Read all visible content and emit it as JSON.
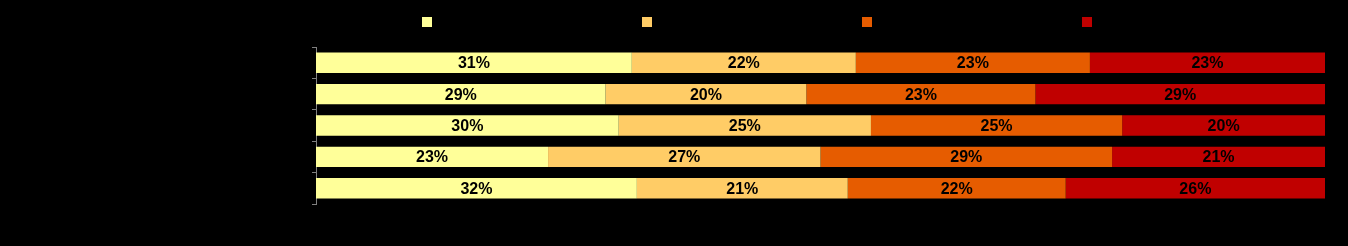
{
  "chart_data": {
    "type": "bar",
    "orientation": "horizontal",
    "stacked": true,
    "data_labels": true,
    "tick_labels": false,
    "legend": "top",
    "grid": false,
    "categories": [
      null,
      null,
      null,
      null,
      null
    ],
    "xlim": [
      0,
      100
    ],
    "series": [
      {
        "color": "#ffff99",
        "values": [
          31.3,
          28.7,
          30.0,
          23.0,
          31.8
        ],
        "value_labels": [
          "31%",
          "29%",
          "30%",
          "23%",
          "32%"
        ]
      },
      {
        "color": "#ffcc66",
        "values": [
          22.2,
          19.9,
          25.0,
          27.0,
          20.9
        ],
        "value_labels": [
          "22%",
          "20%",
          "25%",
          "27%",
          "21%"
        ]
      },
      {
        "color": "#e65c00",
        "values": [
          23.2,
          22.7,
          24.9,
          28.9,
          21.6
        ],
        "value_labels": [
          "23%",
          "23%",
          "25%",
          "29%",
          "22%"
        ]
      },
      {
        "color": "#c00000",
        "values": [
          23.3,
          28.7,
          20.1,
          21.1,
          25.7
        ],
        "value_labels": [
          "23%",
          "29%",
          "20%",
          "21%",
          "26%"
        ]
      }
    ]
  }
}
